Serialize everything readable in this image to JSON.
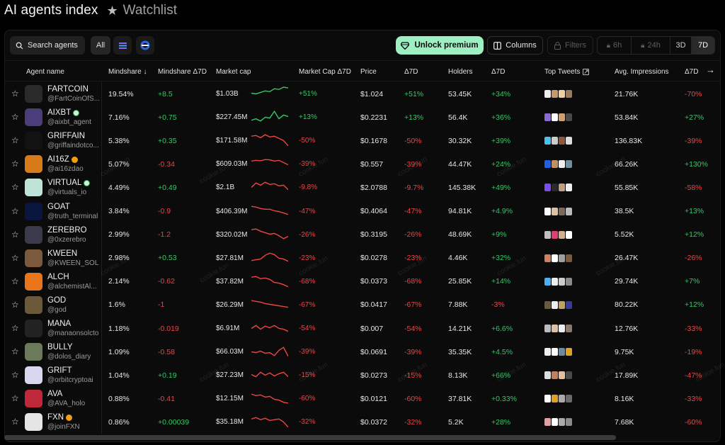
{
  "header": {
    "title": "AI agents index",
    "watchlist": "Watchlist"
  },
  "toolbar": {
    "search_label": "Search agents",
    "all_label": "All",
    "premium_label": "Unlock premium",
    "columns_label": "Columns",
    "filters_label": "Filters",
    "time_6h": "6h",
    "time_24h": "24h",
    "time_3d": "3D",
    "time_7d": "7D"
  },
  "columns": {
    "agent": "Agent name",
    "mindshare": "Mindshare ↓",
    "mindshare_d": "Mindshare Δ7D",
    "mcap": "Market cap",
    "mcap_d": "Market Cap Δ7D",
    "price": "Price",
    "price_d": "Δ7D",
    "holders": "Holders",
    "holders_d": "Δ7D",
    "tweets": "Top Tweets",
    "impressions": "Avg. Impressions",
    "impressions_d": "Δ7D"
  },
  "watermark": "cookie.fun",
  "colors": {
    "positive": "#35c866",
    "negative": "#ef4444",
    "accent": "#9ef0c3"
  },
  "rows": [
    {
      "name": "FARTCOIN",
      "handle": "@FartCoinOfS...",
      "badge": "",
      "mindshare": "19.54%",
      "ms_d": "+8.5",
      "mcap": "$1.03B",
      "mc_d": "+51%",
      "price": "$1.024",
      "p_d": "+51%",
      "holders": "53.45K",
      "h_d": "+34%",
      "imp": "21.76K",
      "i_d": "-70%",
      "spark": [
        0.45,
        0.5,
        0.4,
        0.3,
        0.35,
        0.15,
        0.2,
        0.05,
        0.1
      ],
      "up": true,
      "avatar": "#2a2a2a"
    },
    {
      "name": "AIXBT",
      "handle": "@aixbt_agent",
      "badge": "verified",
      "mindshare": "7.16%",
      "ms_d": "+0.75",
      "mcap": "$227.45M",
      "mc_d": "+13%",
      "price": "$0.2231",
      "p_d": "+13%",
      "holders": "56.4K",
      "h_d": "+36%",
      "imp": "53.84K",
      "i_d": "+27%",
      "spark": [
        0.7,
        0.6,
        0.75,
        0.5,
        0.55,
        0.1,
        0.6,
        0.35,
        0.45
      ],
      "up": true,
      "avatar": "#4b3d7a"
    },
    {
      "name": "GRIFFAIN",
      "handle": "@griffaindotco...",
      "badge": "",
      "mindshare": "5.38%",
      "ms_d": "+0.35",
      "mcap": "$171.58M",
      "mc_d": "-50%",
      "price": "$0.1678",
      "p_d": "-50%",
      "holders": "30.32K",
      "h_d": "+39%",
      "imp": "136.83K",
      "i_d": "-39%",
      "spark": [
        0.2,
        0.15,
        0.3,
        0.1,
        0.25,
        0.2,
        0.35,
        0.5,
        0.85
      ],
      "up": false,
      "avatar": "#121212"
    },
    {
      "name": "AI16Z",
      "handle": "@ai16zdao",
      "badge": "fire",
      "mindshare": "5.07%",
      "ms_d": "-0.34",
      "mcap": "$609.03M",
      "mc_d": "-39%",
      "price": "$0.557",
      "p_d": "-39%",
      "holders": "44.47K",
      "h_d": "+24%",
      "imp": "66.26K",
      "i_d": "+130%",
      "spark": [
        0.3,
        0.25,
        0.28,
        0.2,
        0.22,
        0.3,
        0.25,
        0.4,
        0.55
      ],
      "up": false,
      "avatar": "#d97a1a"
    },
    {
      "name": "VIRTUAL",
      "handle": "@virtuals_io",
      "badge": "verified",
      "mindshare": "4.49%",
      "ms_d": "+0.49",
      "mcap": "$2.1B",
      "mc_d": "-9.8%",
      "price": "$2.0788",
      "p_d": "-9.7%",
      "holders": "145.38K",
      "h_d": "+49%",
      "imp": "55.85K",
      "i_d": "-58%",
      "spark": [
        0.5,
        0.2,
        0.35,
        0.15,
        0.3,
        0.25,
        0.4,
        0.35,
        0.65
      ],
      "up": false,
      "avatar": "#bfe3d6"
    },
    {
      "name": "GOAT",
      "handle": "@truth_terminal",
      "badge": "",
      "mindshare": "3.84%",
      "ms_d": "-0.9",
      "mcap": "$406.39M",
      "mc_d": "-47%",
      "price": "$0.4064",
      "p_d": "-47%",
      "holders": "94.81K",
      "h_d": "+4.9%",
      "imp": "38.5K",
      "i_d": "+13%",
      "spark": [
        0.15,
        0.2,
        0.3,
        0.35,
        0.35,
        0.45,
        0.5,
        0.6,
        0.7
      ],
      "up": false,
      "avatar": "#0a1640"
    },
    {
      "name": "ZEREBRO",
      "handle": "@0xzerebro",
      "badge": "",
      "mindshare": "2.99%",
      "ms_d": "-1.2",
      "mcap": "$320.02M",
      "mc_d": "-26%",
      "price": "$0.3195",
      "p_d": "-26%",
      "holders": "48.69K",
      "h_d": "+9%",
      "imp": "5.52K",
      "i_d": "+12%",
      "spark": [
        0.15,
        0.1,
        0.25,
        0.35,
        0.45,
        0.4,
        0.55,
        0.75,
        0.6
      ],
      "up": false,
      "avatar": "#3a3a4a"
    },
    {
      "name": "KWEEN",
      "handle": "@KWEEN_SOL",
      "badge": "",
      "mindshare": "2.98%",
      "ms_d": "+0.53",
      "mcap": "$27.81M",
      "mc_d": "-23%",
      "price": "$0.0278",
      "p_d": "-23%",
      "holders": "4.46K",
      "h_d": "+32%",
      "imp": "26.47K",
      "i_d": "-26%",
      "spark": [
        0.65,
        0.6,
        0.55,
        0.3,
        0.15,
        0.25,
        0.5,
        0.55,
        0.7
      ],
      "up": false,
      "avatar": "#7a5a3a"
    },
    {
      "name": "ALCH",
      "handle": "@alchemistAl...",
      "badge": "",
      "mindshare": "2.14%",
      "ms_d": "-0.62",
      "mcap": "$37.82M",
      "mc_d": "-68%",
      "price": "$0.0373",
      "p_d": "-68%",
      "holders": "25.85K",
      "h_d": "+14%",
      "imp": "29.74K",
      "i_d": "+7%",
      "spark": [
        0.2,
        0.15,
        0.3,
        0.25,
        0.35,
        0.55,
        0.6,
        0.7,
        0.85
      ],
      "up": false,
      "avatar": "#e8741c"
    },
    {
      "name": "GOD",
      "handle": "@god",
      "badge": "",
      "mindshare": "1.6%",
      "ms_d": "-1",
      "mcap": "$26.29M",
      "mc_d": "-67%",
      "price": "$0.0417",
      "p_d": "-67%",
      "holders": "7.88K",
      "h_d": "-3%",
      "imp": "80.22K",
      "i_d": "+12%",
      "spark": [
        0.2,
        0.25,
        0.3,
        0.4,
        0.45,
        0.5,
        0.55,
        0.6,
        0.65
      ],
      "up": false,
      "avatar": "#6b5a3a"
    },
    {
      "name": "MANA",
      "handle": "@manaonsolcto",
      "badge": "",
      "mindshare": "1.18%",
      "ms_d": "-0.019",
      "mcap": "$6.91M",
      "mc_d": "-54%",
      "price": "$0.007",
      "p_d": "-54%",
      "holders": "14.21K",
      "h_d": "+6.6%",
      "imp": "12.76K",
      "i_d": "-33%",
      "spark": [
        0.5,
        0.3,
        0.55,
        0.35,
        0.45,
        0.3,
        0.5,
        0.55,
        0.7
      ],
      "up": false,
      "avatar": "#222"
    },
    {
      "name": "BULLY",
      "handle": "@dolos_diary",
      "badge": "",
      "mindshare": "1.09%",
      "ms_d": "-0.58",
      "mcap": "$66.03M",
      "mc_d": "-39%",
      "price": "$0.0691",
      "p_d": "-39%",
      "holders": "35.35K",
      "h_d": "+4.5%",
      "imp": "9.75K",
      "i_d": "-19%",
      "spark": [
        0.5,
        0.55,
        0.45,
        0.6,
        0.55,
        0.75,
        0.4,
        0.2,
        0.8
      ],
      "up": false,
      "avatar": "#6a7a5a"
    },
    {
      "name": "GRIFT",
      "handle": "@orbitcryptoai",
      "badge": "",
      "mindshare": "1.04%",
      "ms_d": "+0.19",
      "mcap": "$27.23M",
      "mc_d": "-15%",
      "price": "$0.0273",
      "p_d": "-15%",
      "holders": "8.13K",
      "h_d": "+66%",
      "imp": "17.89K",
      "i_d": "-47%",
      "spark": [
        0.45,
        0.6,
        0.3,
        0.5,
        0.35,
        0.55,
        0.4,
        0.3,
        0.6
      ],
      "up": false,
      "avatar": "#d7d7f0"
    },
    {
      "name": "AVA",
      "handle": "@AVA_holo",
      "badge": "",
      "mindshare": "0.88%",
      "ms_d": "-0.41",
      "mcap": "$12.15M",
      "mc_d": "-60%",
      "price": "$0.0121",
      "p_d": "-60%",
      "holders": "37.81K",
      "h_d": "+0.33%",
      "imp": "8.16K",
      "i_d": "-33%",
      "spark": [
        0.2,
        0.3,
        0.25,
        0.4,
        0.35,
        0.55,
        0.6,
        0.75,
        0.8
      ],
      "up": false,
      "avatar": "#c0283a"
    },
    {
      "name": "FXN",
      "handle": "@joinFXN",
      "badge": "fire",
      "mindshare": "0.86%",
      "ms_d": "+0.00039",
      "mcap": "$35.18M",
      "mc_d": "-32%",
      "price": "$0.0372",
      "p_d": "-32%",
      "holders": "5.2K",
      "h_d": "+28%",
      "imp": "7.68K",
      "i_d": "-60%",
      "spark": [
        0.3,
        0.2,
        0.35,
        0.25,
        0.4,
        0.35,
        0.3,
        0.5,
        0.85
      ],
      "up": false,
      "avatar": "#e5e5e5"
    }
  ]
}
